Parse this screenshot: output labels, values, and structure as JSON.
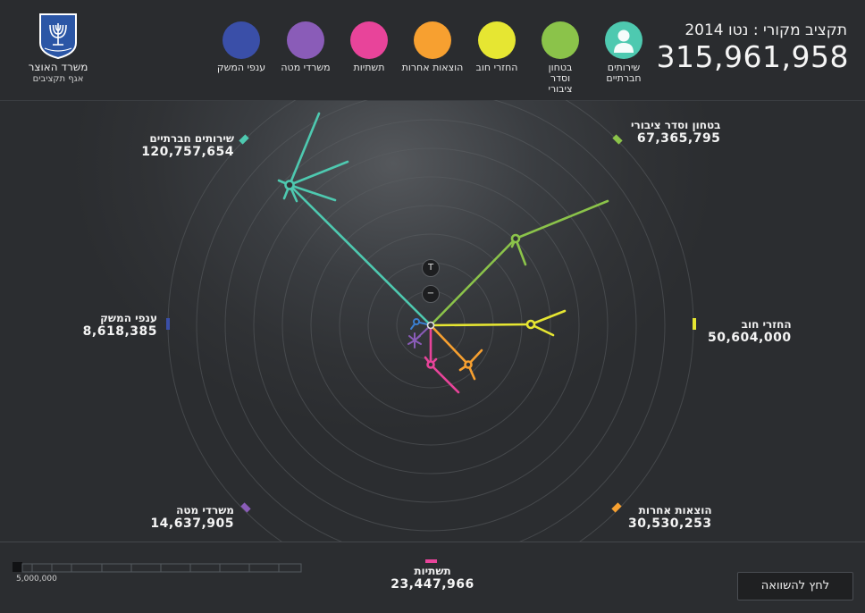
{
  "ministry": {
    "name": "משרד האוצר",
    "department": "אגף תקציבים"
  },
  "budget": {
    "title": "תקציב מקורי : נטו 2014",
    "total": "315,961,958"
  },
  "legend": [
    {
      "label": "שירותים חברתיים",
      "color": "#4ec9b0",
      "icon": "person-icon"
    },
    {
      "label": "בטחון וסדר ציבורי",
      "color": "#8bc34a"
    },
    {
      "label": "החזרי חוב",
      "color": "#e6e632"
    },
    {
      "label": "הוצאות אחרות",
      "color": "#f7a030"
    },
    {
      "label": "תשתיות",
      "color": "#e8449a"
    },
    {
      "label": "משרדי מטה",
      "color": "#8a5cb8"
    },
    {
      "label": "ענפי המשק",
      "color": "#3a4fa8"
    }
  ],
  "categories": {
    "social": {
      "name": "שירותים חברתיים",
      "value": "120,757,654",
      "color": "#4ec9b0"
    },
    "security": {
      "name": "בטחון וסדר ציבורי",
      "value": "67,365,795",
      "color": "#8bc34a"
    },
    "debt": {
      "name": "החזרי חוב",
      "value": "50,604,000",
      "color": "#e6e632"
    },
    "other": {
      "name": "הוצאות אחרות",
      "value": "30,530,253",
      "color": "#f7a030"
    },
    "infra": {
      "name": "תשתיות",
      "value": "23,447,966",
      "color": "#e8449a"
    },
    "hq": {
      "name": "משרדי מטה",
      "value": "14,637,905",
      "color": "#8a5cb8"
    },
    "economy": {
      "name": "ענפי המשק",
      "value": "8,618,385",
      "color": "#3a4fa8"
    }
  },
  "controls": {
    "top_button": "T",
    "minus_button": "−"
  },
  "scale": {
    "label": "5,000,000"
  },
  "compare_button": "לחץ להשוואה"
}
